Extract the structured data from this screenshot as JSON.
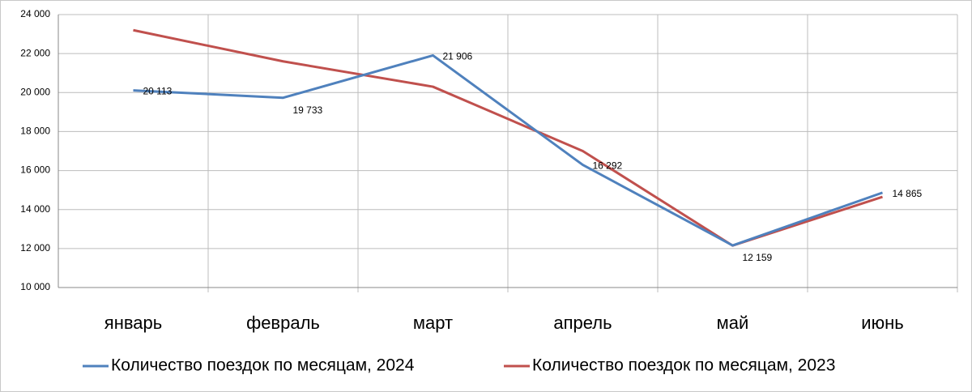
{
  "chart_data": {
    "type": "line",
    "categories": [
      "январь",
      "февраль",
      "март",
      "апрель",
      "май",
      "июнь"
    ],
    "series": [
      {
        "name": "Количество поездок по месяцам, 2024",
        "color": "#4f81bd",
        "values": [
          20113,
          19733,
          21906,
          16292,
          12159,
          14865
        ],
        "value_labels": [
          "20 113",
          "19 733",
          "21 906",
          "16 292",
          "12 159",
          "14 865"
        ]
      },
      {
        "name": "Количество поездок по месяцам, 2023",
        "color": "#c0504d",
        "values": [
          23200,
          21600,
          20300,
          17000,
          12150,
          14650
        ]
      }
    ],
    "ylim": [
      10000,
      24000
    ],
    "yticks": [
      {
        "value": 10000,
        "label": "10 000"
      },
      {
        "value": 12000,
        "label": "12 000"
      },
      {
        "value": 14000,
        "label": "14 000"
      },
      {
        "value": 16000,
        "label": "16 000"
      },
      {
        "value": 18000,
        "label": "18 000"
      },
      {
        "value": 20000,
        "label": "20 000"
      },
      {
        "value": 22000,
        "label": "22 000"
      },
      {
        "value": 24000,
        "label": "24 000"
      }
    ],
    "grid": true
  }
}
